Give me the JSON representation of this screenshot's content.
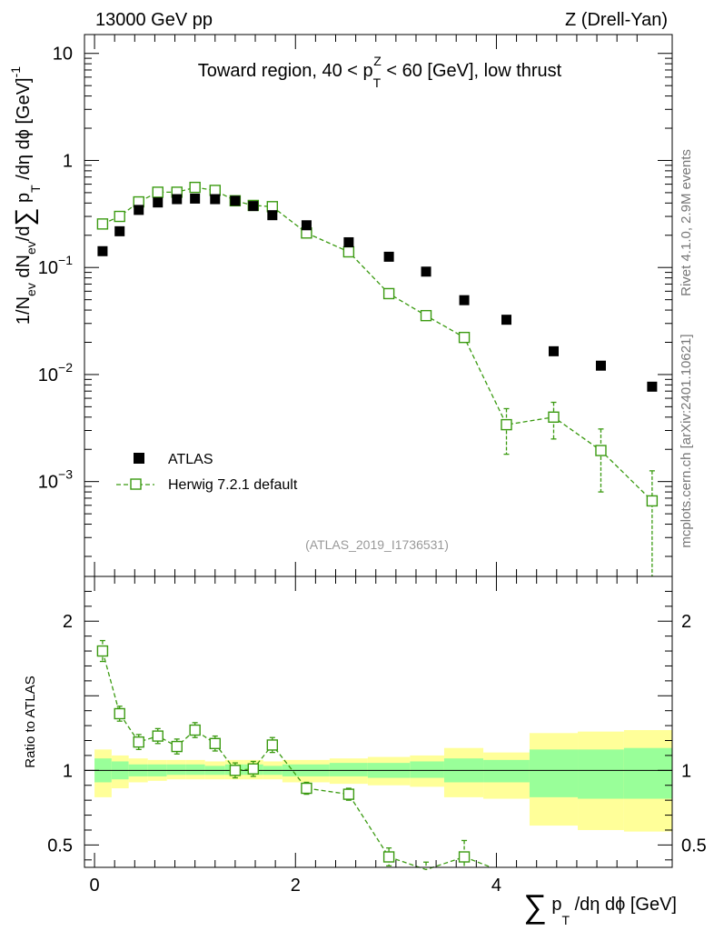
{
  "header": {
    "left": "13000 GeV pp",
    "right": "Z (Drell-Yan)"
  },
  "side": {
    "rivet": "Rivet 4.1.0,  2.9M events",
    "site": "mcplots.cern.ch [arXiv:2401.10621]"
  },
  "colors": {
    "mc": "#3a9a10",
    "data": "#000000",
    "band_outer": "#ffff99",
    "band_inner": "#99ff99"
  },
  "chart_data": [
    {
      "type": "scatter",
      "title": "Toward region, 40 < p_T^Z < 60 [GeV], low thrust",
      "title_parts": {
        "a": "Toward region, 40 < p",
        "sub": "T",
        "sup": "Z",
        "b": " < 60 [GeV], low thrust"
      },
      "ylabel_parts": {
        "a": "1/N",
        "s1": "ev",
        "b": " dN",
        "s2": "ev",
        "c": "/d",
        "sum": "∑",
        "d": " p",
        "s3": "T",
        "e": " /dη dϕ  [GeV]",
        "sup": "-1"
      },
      "xlabel_parts": {
        "sum": "∑",
        "a": " p",
        "sub": "T",
        "b": " /dη dϕ [GeV]"
      },
      "yscale": "log",
      "ylim": [
        0.00013,
        15
      ],
      "xlim": [
        -0.1,
        5.75
      ],
      "yticks": [
        {
          "v": 10,
          "base": "10",
          "exp": ""
        },
        {
          "v": 1,
          "base": "1",
          "exp": ""
        },
        {
          "v": 0.1,
          "base": "10",
          "exp": "−1"
        },
        {
          "v": 0.01,
          "base": "10",
          "exp": "−2"
        },
        {
          "v": 0.001,
          "base": "10",
          "exp": "−3"
        }
      ],
      "watermark": "(ATLAS_2019_I1736531)",
      "legend": [
        "ATLAS",
        "Herwig 7.2.1 default"
      ],
      "series": [
        {
          "name": "ATLAS",
          "x": [
            0.08,
            0.25,
            0.44,
            0.63,
            0.82,
            1.0,
            1.2,
            1.4,
            1.58,
            1.77,
            2.11,
            2.53,
            2.93,
            3.3,
            3.68,
            4.1,
            4.57,
            5.04,
            5.55
          ],
          "y": [
            0.142,
            0.218,
            0.345,
            0.405,
            0.435,
            0.44,
            0.435,
            0.42,
            0.375,
            0.308,
            0.248,
            0.172,
            0.126,
            0.0915,
            0.0495,
            0.0325,
            0.0165,
            0.0121,
            0.0077
          ]
        },
        {
          "name": "Herwig 7.2.1 default",
          "x": [
            0.08,
            0.25,
            0.44,
            0.63,
            0.82,
            1.0,
            1.2,
            1.4,
            1.58,
            1.77,
            2.11,
            2.53,
            2.93,
            3.3,
            3.68,
            4.1,
            4.57,
            5.04,
            5.55
          ],
          "y": [
            0.255,
            0.3,
            0.41,
            0.505,
            0.505,
            0.56,
            0.525,
            0.42,
            0.38,
            0.37,
            0.21,
            0.14,
            0.057,
            0.0355,
            0.0222,
            0.0034,
            0.004,
            0.00195,
            0.00066
          ],
          "err_lo": [
            0.01,
            0.012,
            0.015,
            0.018,
            0.018,
            0.02,
            0.02,
            0.018,
            0.016,
            0.016,
            0.01,
            0.008,
            0.005,
            0.004,
            0.003,
            0.0016,
            0.0015,
            0.00115,
            0.0006
          ],
          "err_hi": [
            0.01,
            0.012,
            0.015,
            0.018,
            0.018,
            0.02,
            0.02,
            0.018,
            0.016,
            0.016,
            0.01,
            0.008,
            0.005,
            0.004,
            0.003,
            0.0014,
            0.0015,
            0.00115,
            0.0006
          ]
        }
      ]
    },
    {
      "type": "line",
      "ylabel": "Ratio to ATLAS",
      "xlabel": "∑ p_T /dη dϕ [GeV]",
      "ylim": [
        0.35,
        2.3
      ],
      "xlim": [
        -0.1,
        5.75
      ],
      "yticks": [
        {
          "v": 2,
          "label": "2"
        },
        {
          "v": 1,
          "label": "1"
        },
        {
          "v": 0.5,
          "label": "0.5"
        }
      ],
      "xticks": [
        {
          "v": 0,
          "label": "0"
        },
        {
          "v": 2,
          "label": "2"
        },
        {
          "v": 4,
          "label": "4"
        }
      ],
      "reference": 1,
      "bands": {
        "edges": [
          0.0,
          0.17,
          0.34,
          0.53,
          0.72,
          0.91,
          1.1,
          1.3,
          1.49,
          1.68,
          1.87,
          2.34,
          2.72,
          3.14,
          3.48,
          3.87,
          4.33,
          4.81,
          5.27,
          5.75
        ],
        "outer_lo": [
          0.82,
          0.88,
          0.92,
          0.93,
          0.94,
          0.94,
          0.94,
          0.94,
          0.94,
          0.94,
          0.92,
          0.91,
          0.9,
          0.89,
          0.82,
          0.81,
          0.63,
          0.6,
          0.59
        ],
        "outer_hi": [
          1.14,
          1.1,
          1.08,
          1.07,
          1.07,
          1.07,
          1.06,
          1.07,
          1.07,
          1.06,
          1.07,
          1.08,
          1.09,
          1.1,
          1.15,
          1.12,
          1.25,
          1.26,
          1.27
        ],
        "inner_lo": [
          0.92,
          0.94,
          0.96,
          0.96,
          0.97,
          0.97,
          0.97,
          0.97,
          0.97,
          0.97,
          0.96,
          0.96,
          0.95,
          0.95,
          0.92,
          0.92,
          0.82,
          0.81,
          0.81
        ],
        "inner_hi": [
          1.08,
          1.06,
          1.04,
          1.04,
          1.04,
          1.04,
          1.03,
          1.04,
          1.04,
          1.03,
          1.04,
          1.05,
          1.05,
          1.06,
          1.08,
          1.07,
          1.14,
          1.14,
          1.15
        ]
      },
      "series": [
        {
          "name": "Herwig 7.2.1 default / ATLAS",
          "x": [
            0.08,
            0.25,
            0.44,
            0.63,
            0.82,
            1.0,
            1.2,
            1.4,
            1.58,
            1.77,
            2.11,
            2.53,
            2.93,
            3.3,
            3.68
          ],
          "y": [
            1.8,
            1.38,
            1.19,
            1.23,
            1.16,
            1.27,
            1.18,
            1.0,
            1.01,
            1.17,
            0.88,
            0.84,
            0.42,
            0.335,
            0.42
          ],
          "err": [
            0.07,
            0.05,
            0.05,
            0.05,
            0.05,
            0.05,
            0.05,
            0.05,
            0.05,
            0.05,
            0.04,
            0.04,
            0.06,
            0.05,
            0.11
          ]
        }
      ]
    }
  ]
}
